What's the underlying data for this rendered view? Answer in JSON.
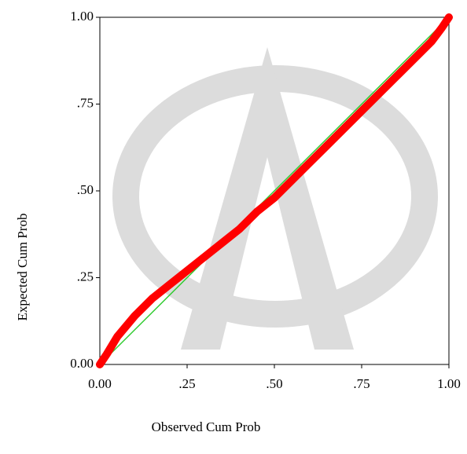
{
  "chart_data": {
    "type": "line",
    "x_label": "Observed Cum Prob",
    "y_label": "Expected Cum Prob",
    "x": [
      0,
      0.02,
      0.05,
      0.1,
      0.15,
      0.2,
      0.25,
      0.3,
      0.35,
      0.4,
      0.45,
      0.5,
      0.55,
      0.6,
      0.65,
      0.7,
      0.75,
      0.8,
      0.85,
      0.9,
      0.95,
      0.98,
      1
    ],
    "values": [
      0,
      0.03,
      0.08,
      0.14,
      0.19,
      0.23,
      0.27,
      0.31,
      0.35,
      0.39,
      0.44,
      0.48,
      0.53,
      0.58,
      0.63,
      0.68,
      0.73,
      0.78,
      0.83,
      0.88,
      0.93,
      0.97,
      1
    ],
    "color": "#ff0000",
    "reference_line_color": "#33cc33",
    "xlim": [
      0,
      1
    ],
    "ylim": [
      0,
      1
    ],
    "xticks": [
      {
        "value": 0,
        "label": "0.00"
      },
      {
        "value": 0.25,
        "label": ".25"
      },
      {
        "value": 0.5,
        "label": ".50"
      },
      {
        "value": 0.75,
        "label": ".75"
      },
      {
        "value": 1,
        "label": "1.00"
      }
    ],
    "yticks": [
      {
        "value": 0,
        "label": "0.00"
      },
      {
        "value": 0.25,
        "label": ".25"
      },
      {
        "value": 0.5,
        "label": ".50"
      },
      {
        "value": 0.75,
        "label": ".75"
      },
      {
        "value": 1,
        "label": "1.00"
      }
    ]
  }
}
